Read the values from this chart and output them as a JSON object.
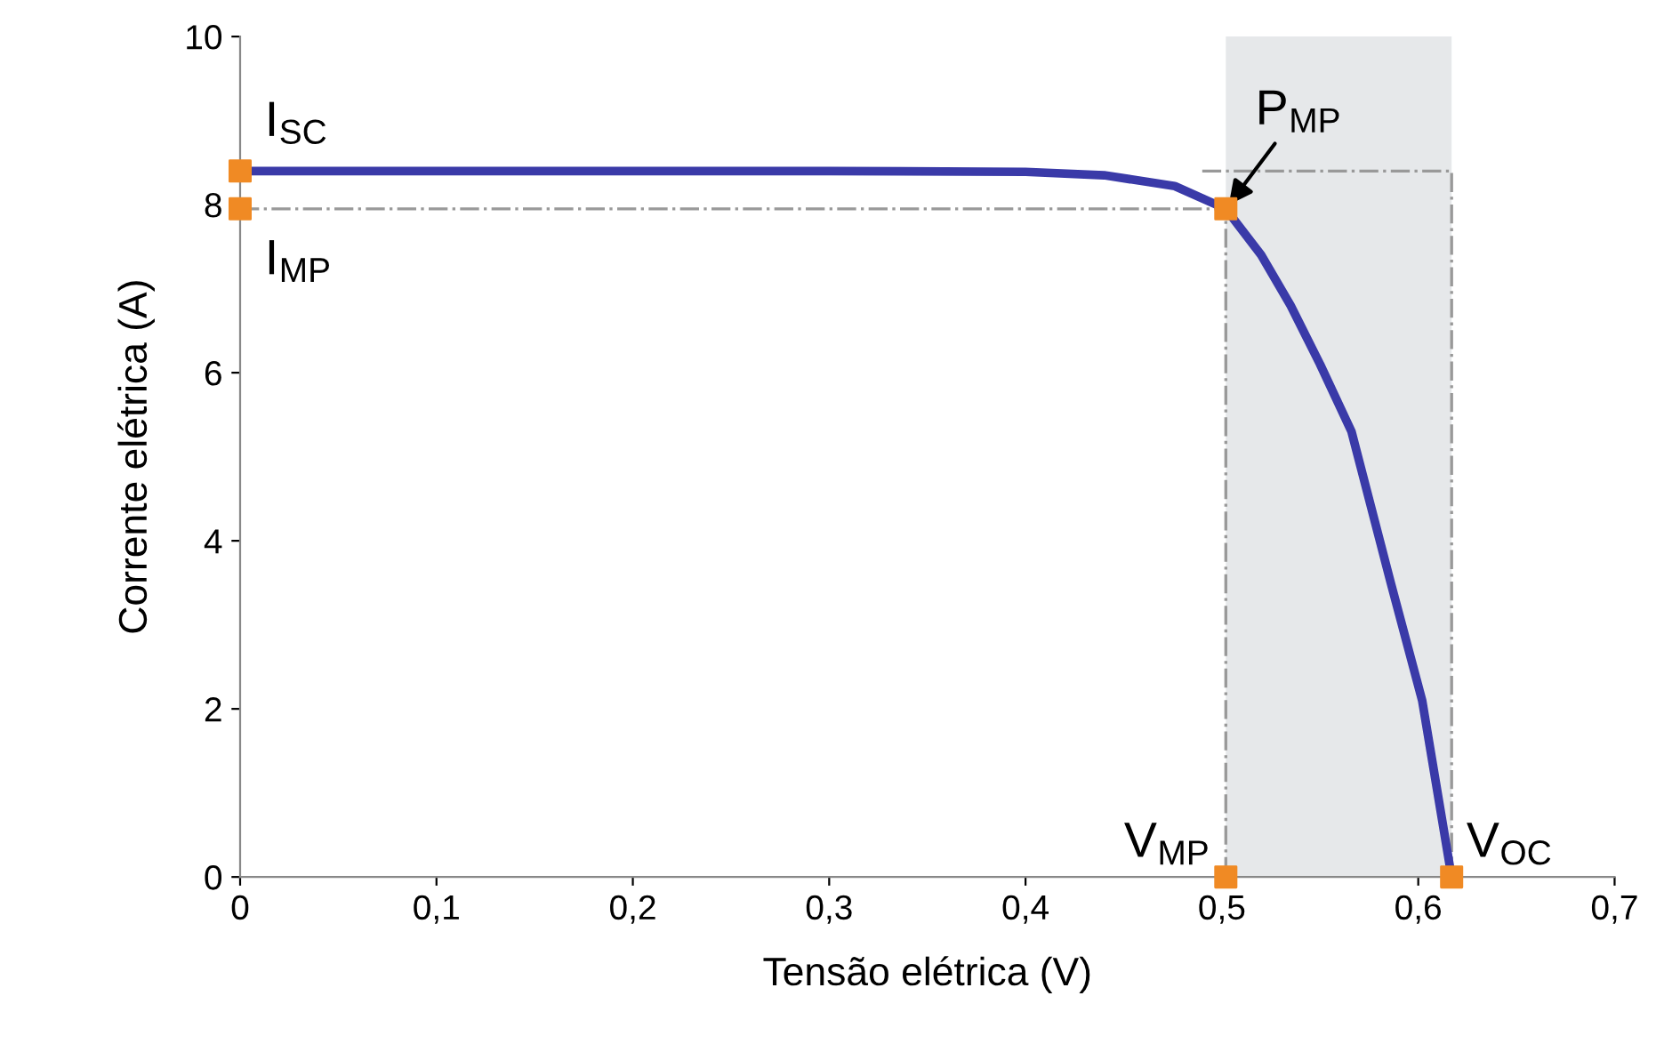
{
  "chart_data": {
    "type": "line",
    "xlabel": "Tensão elétrica (V)",
    "ylabel": "Corrente elétrica (A)",
    "xlim": [
      0,
      0.7
    ],
    "xticks": [
      0,
      {
        "value": 0.1,
        "label": "0,1"
      },
      {
        "value": 0.2,
        "label": "0,2"
      },
      {
        "value": 0.3,
        "label": "0,3"
      },
      {
        "value": 0.4,
        "label": "0,4"
      },
      {
        "value": 0.5,
        "label": "0,5"
      },
      {
        "value": 0.6,
        "label": "0,6"
      },
      {
        "value": 0.7,
        "label": "0,7"
      }
    ],
    "ylim": [
      0,
      10
    ],
    "yticks": [
      0,
      2,
      4,
      6,
      8,
      10
    ],
    "grid": false,
    "bands": [
      {
        "axis": "x",
        "from": 0.502,
        "to": 0.617,
        "color": "#e6e8ea"
      }
    ],
    "series": [
      {
        "type": "line",
        "color": "#999999",
        "line_style": "dashed",
        "marker": "none",
        "x": [
          0,
          0.502,
          0.502
        ],
        "values": [
          7.95,
          7.95,
          0
        ]
      },
      {
        "type": "line",
        "color": "#999999",
        "line_style": "dashed",
        "marker": "none",
        "x": [
          0.49,
          0.617,
          0.617
        ],
        "values": [
          8.4,
          8.4,
          0
        ]
      },
      {
        "color": "#3a3aa8",
        "line_style": "solid",
        "marker": "none",
        "x": [
          0,
          0.1,
          0.2,
          0.3,
          0.4,
          0.44,
          0.476,
          0.502,
          0.52,
          0.535,
          0.55,
          0.566,
          0.586,
          0.602,
          0.617
        ],
        "values": [
          8.4,
          8.4,
          8.4,
          8.4,
          8.39,
          8.35,
          8.22,
          7.95,
          7.4,
          6.8,
          6.1,
          5.3,
          3.5,
          2.1,
          0
        ]
      },
      {
        "type": "scatter",
        "color": "#f08a24",
        "marker": "square",
        "x": [
          0,
          0,
          0.502,
          0.502,
          0.617
        ],
        "values": [
          8.4,
          7.95,
          7.95,
          0,
          0
        ]
      }
    ],
    "annotations": [
      {
        "text": "I$_{SC}$",
        "x": 0,
        "y": 8.4
      },
      {
        "text": "I$_{MP}$",
        "x": 0,
        "y": 7.95
      },
      {
        "text": "P$_{MP}$",
        "x": 0.502,
        "y": 7.95
      },
      {
        "text": "V$_{MP}$",
        "x": 0.502,
        "y": 0
      },
      {
        "text": "V$_{OC}$",
        "x": 0.617,
        "y": 0
      }
    ]
  }
}
